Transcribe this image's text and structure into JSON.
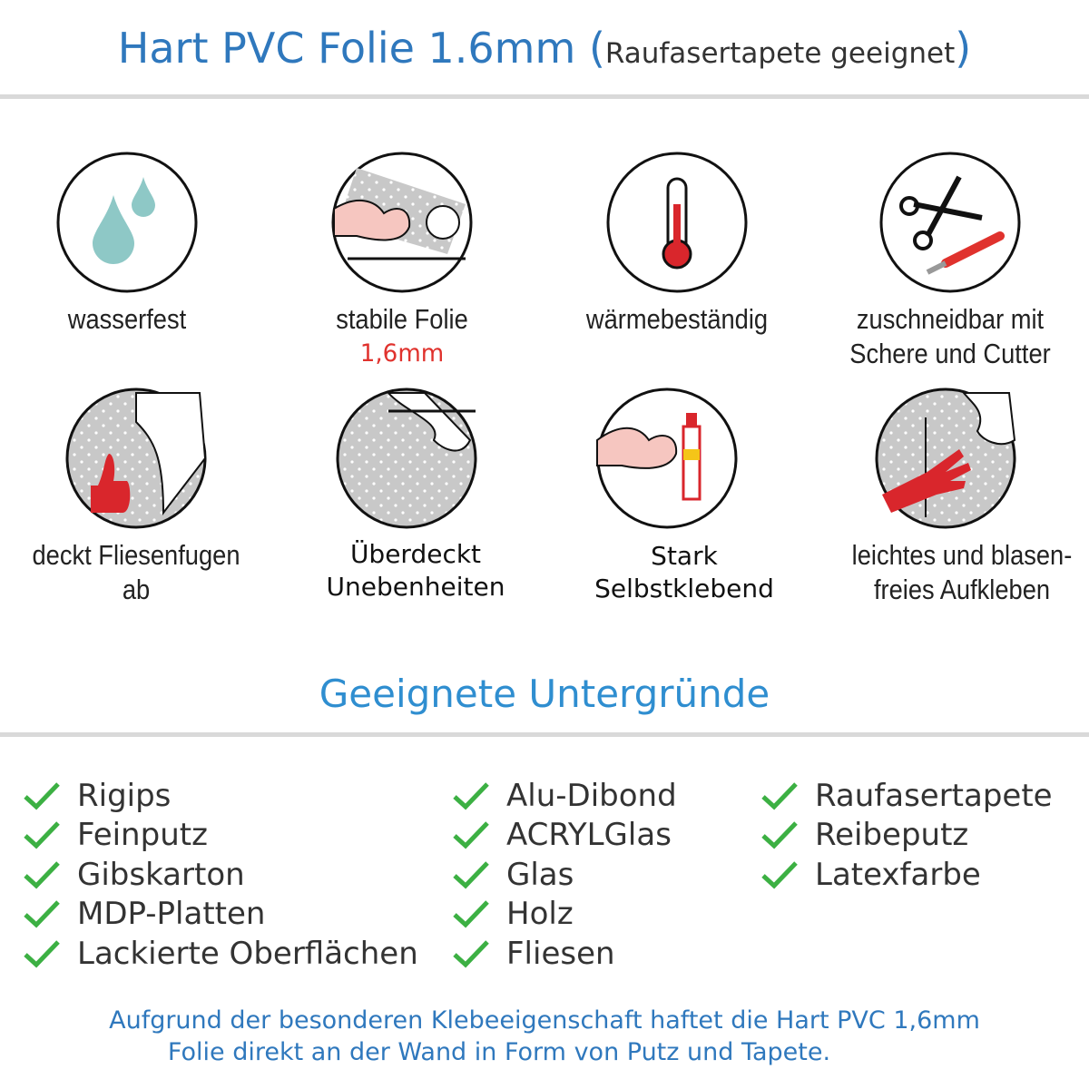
{
  "header": {
    "title": "Hart PVC Folie 1.6mm",
    "subtitle_open": "(",
    "subtitle": "Raufasertapete geeignet",
    "subtitle_close": ")"
  },
  "features": [
    {
      "icon": "water-drops-icon",
      "line1": "wasserfest"
    },
    {
      "icon": "strong-arm-roll-icon",
      "line1": "stabile Folie",
      "highlight": "1,6mm"
    },
    {
      "icon": "thermometer-icon",
      "line1": "wärmebeständig"
    },
    {
      "icon": "scissors-cutter-icon",
      "line1": "zuschneidbar mit",
      "line2": "Schere und Cutter"
    },
    {
      "icon": "thumbs-up-tiles-icon",
      "line1": "deckt Fliesenfugen ab"
    },
    {
      "icon": "peeling-foil-icon",
      "line1": "Überdeckt",
      "line2": "Unebenheiten"
    },
    {
      "icon": "strong-arm-glue-icon",
      "line1": "Stark",
      "line2": "Selbstklebend"
    },
    {
      "icon": "hand-smoothing-icon",
      "line1": "leichtes und blasen-",
      "line2": "freies Aufkleben"
    }
  ],
  "section_title": "Geeignete Untergründe",
  "surfaces": {
    "col1": [
      "Rigips",
      "Feinputz",
      "Gibskarton",
      "MDP-Platten",
      "Lackierte Oberflächen"
    ],
    "col2": [
      "Alu-Dibond",
      "ACRYLGlas",
      "Glas",
      "Holz",
      "Fliesen"
    ],
    "col3": [
      "Raufasertapete",
      "Reibeputz",
      "Latexfarbe"
    ]
  },
  "footer": {
    "line1": "Aufgrund der besonderen Klebeeigenschaft haftet die Hart PVC 1,6mm",
    "line2": "Folie direkt an der Wand in Form von Putz und Tapete."
  },
  "colors": {
    "title": "#2f78bd",
    "section": "#2f8ed0",
    "check": "#3cb043",
    "highlight": "#e0322d",
    "divider": "#d9d9d9"
  }
}
